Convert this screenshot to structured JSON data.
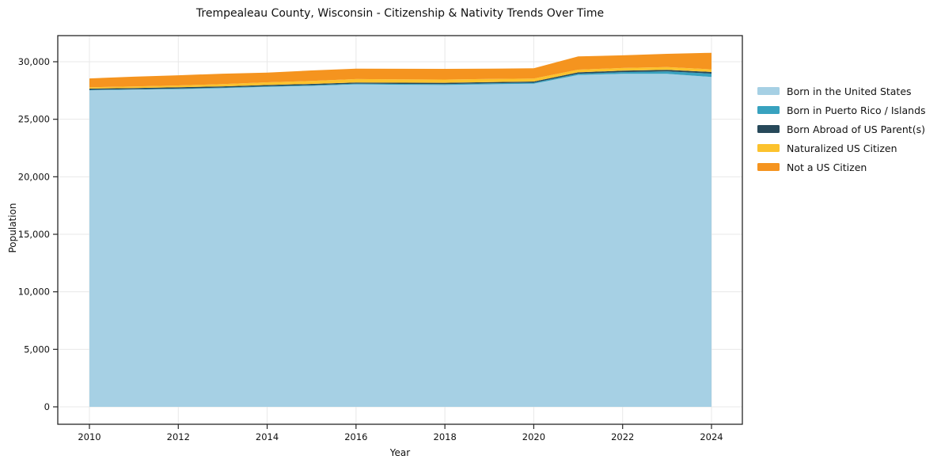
{
  "figure": {
    "background": "#ffffff",
    "text_color": "#111111",
    "grid_color": "#e8e8e8",
    "spine_color": "#262626"
  },
  "chart_data": {
    "type": "area",
    "stacked": true,
    "title": "Trempealeau County, Wisconsin - Citizenship & Nativity Trends Over Time",
    "xlabel": "Year",
    "ylabel": "Population",
    "grid": true,
    "legend_position": "right-outside",
    "xlim": [
      2010,
      2024
    ],
    "ylim": [
      0,
      30000
    ],
    "x": [
      2010,
      2011,
      2012,
      2013,
      2014,
      2015,
      2016,
      2017,
      2018,
      2019,
      2020,
      2021,
      2022,
      2023,
      2024
    ],
    "xticks": [
      2010,
      2012,
      2014,
      2016,
      2018,
      2020,
      2022,
      2024
    ],
    "xtick_labels": [
      "2010",
      "2012",
      "2014",
      "2016",
      "2018",
      "2020",
      "2022",
      "2024"
    ],
    "yticks": [
      0,
      5000,
      10000,
      15000,
      20000,
      25000,
      30000
    ],
    "ytick_labels": [
      "0",
      "5,000",
      "10,000",
      "15,000",
      "20,000",
      "25,000",
      "30,000"
    ],
    "series": [
      {
        "name": "Born in the United States",
        "color": "#a6d0e4",
        "values": [
          27520,
          27570,
          27620,
          27700,
          27810,
          27900,
          28030,
          28000,
          27980,
          28040,
          28090,
          28850,
          28950,
          28950,
          28680
        ]
      },
      {
        "name": "Born in Puerto Rico / Islands",
        "color": "#38a2bf",
        "values": [
          40,
          45,
          50,
          55,
          60,
          65,
          70,
          75,
          80,
          85,
          90,
          110,
          150,
          220,
          290
        ]
      },
      {
        "name": "Born Abroad of US Parent(s)",
        "color": "#27495a",
        "values": [
          100,
          100,
          105,
          105,
          110,
          110,
          100,
          105,
          110,
          105,
          100,
          120,
          125,
          130,
          140
        ]
      },
      {
        "name": "Naturalized US Citizen",
        "color": "#fcc22d",
        "values": [
          120,
          140,
          160,
          200,
          230,
          260,
          290,
          285,
          280,
          270,
          260,
          230,
          230,
          230,
          230
        ]
      },
      {
        "name": "Not a US Citizen",
        "color": "#f5941f",
        "values": [
          770,
          845,
          885,
          900,
          840,
          910,
          910,
          925,
          930,
          900,
          890,
          1150,
          1105,
          1160,
          1440
        ]
      }
    ]
  }
}
